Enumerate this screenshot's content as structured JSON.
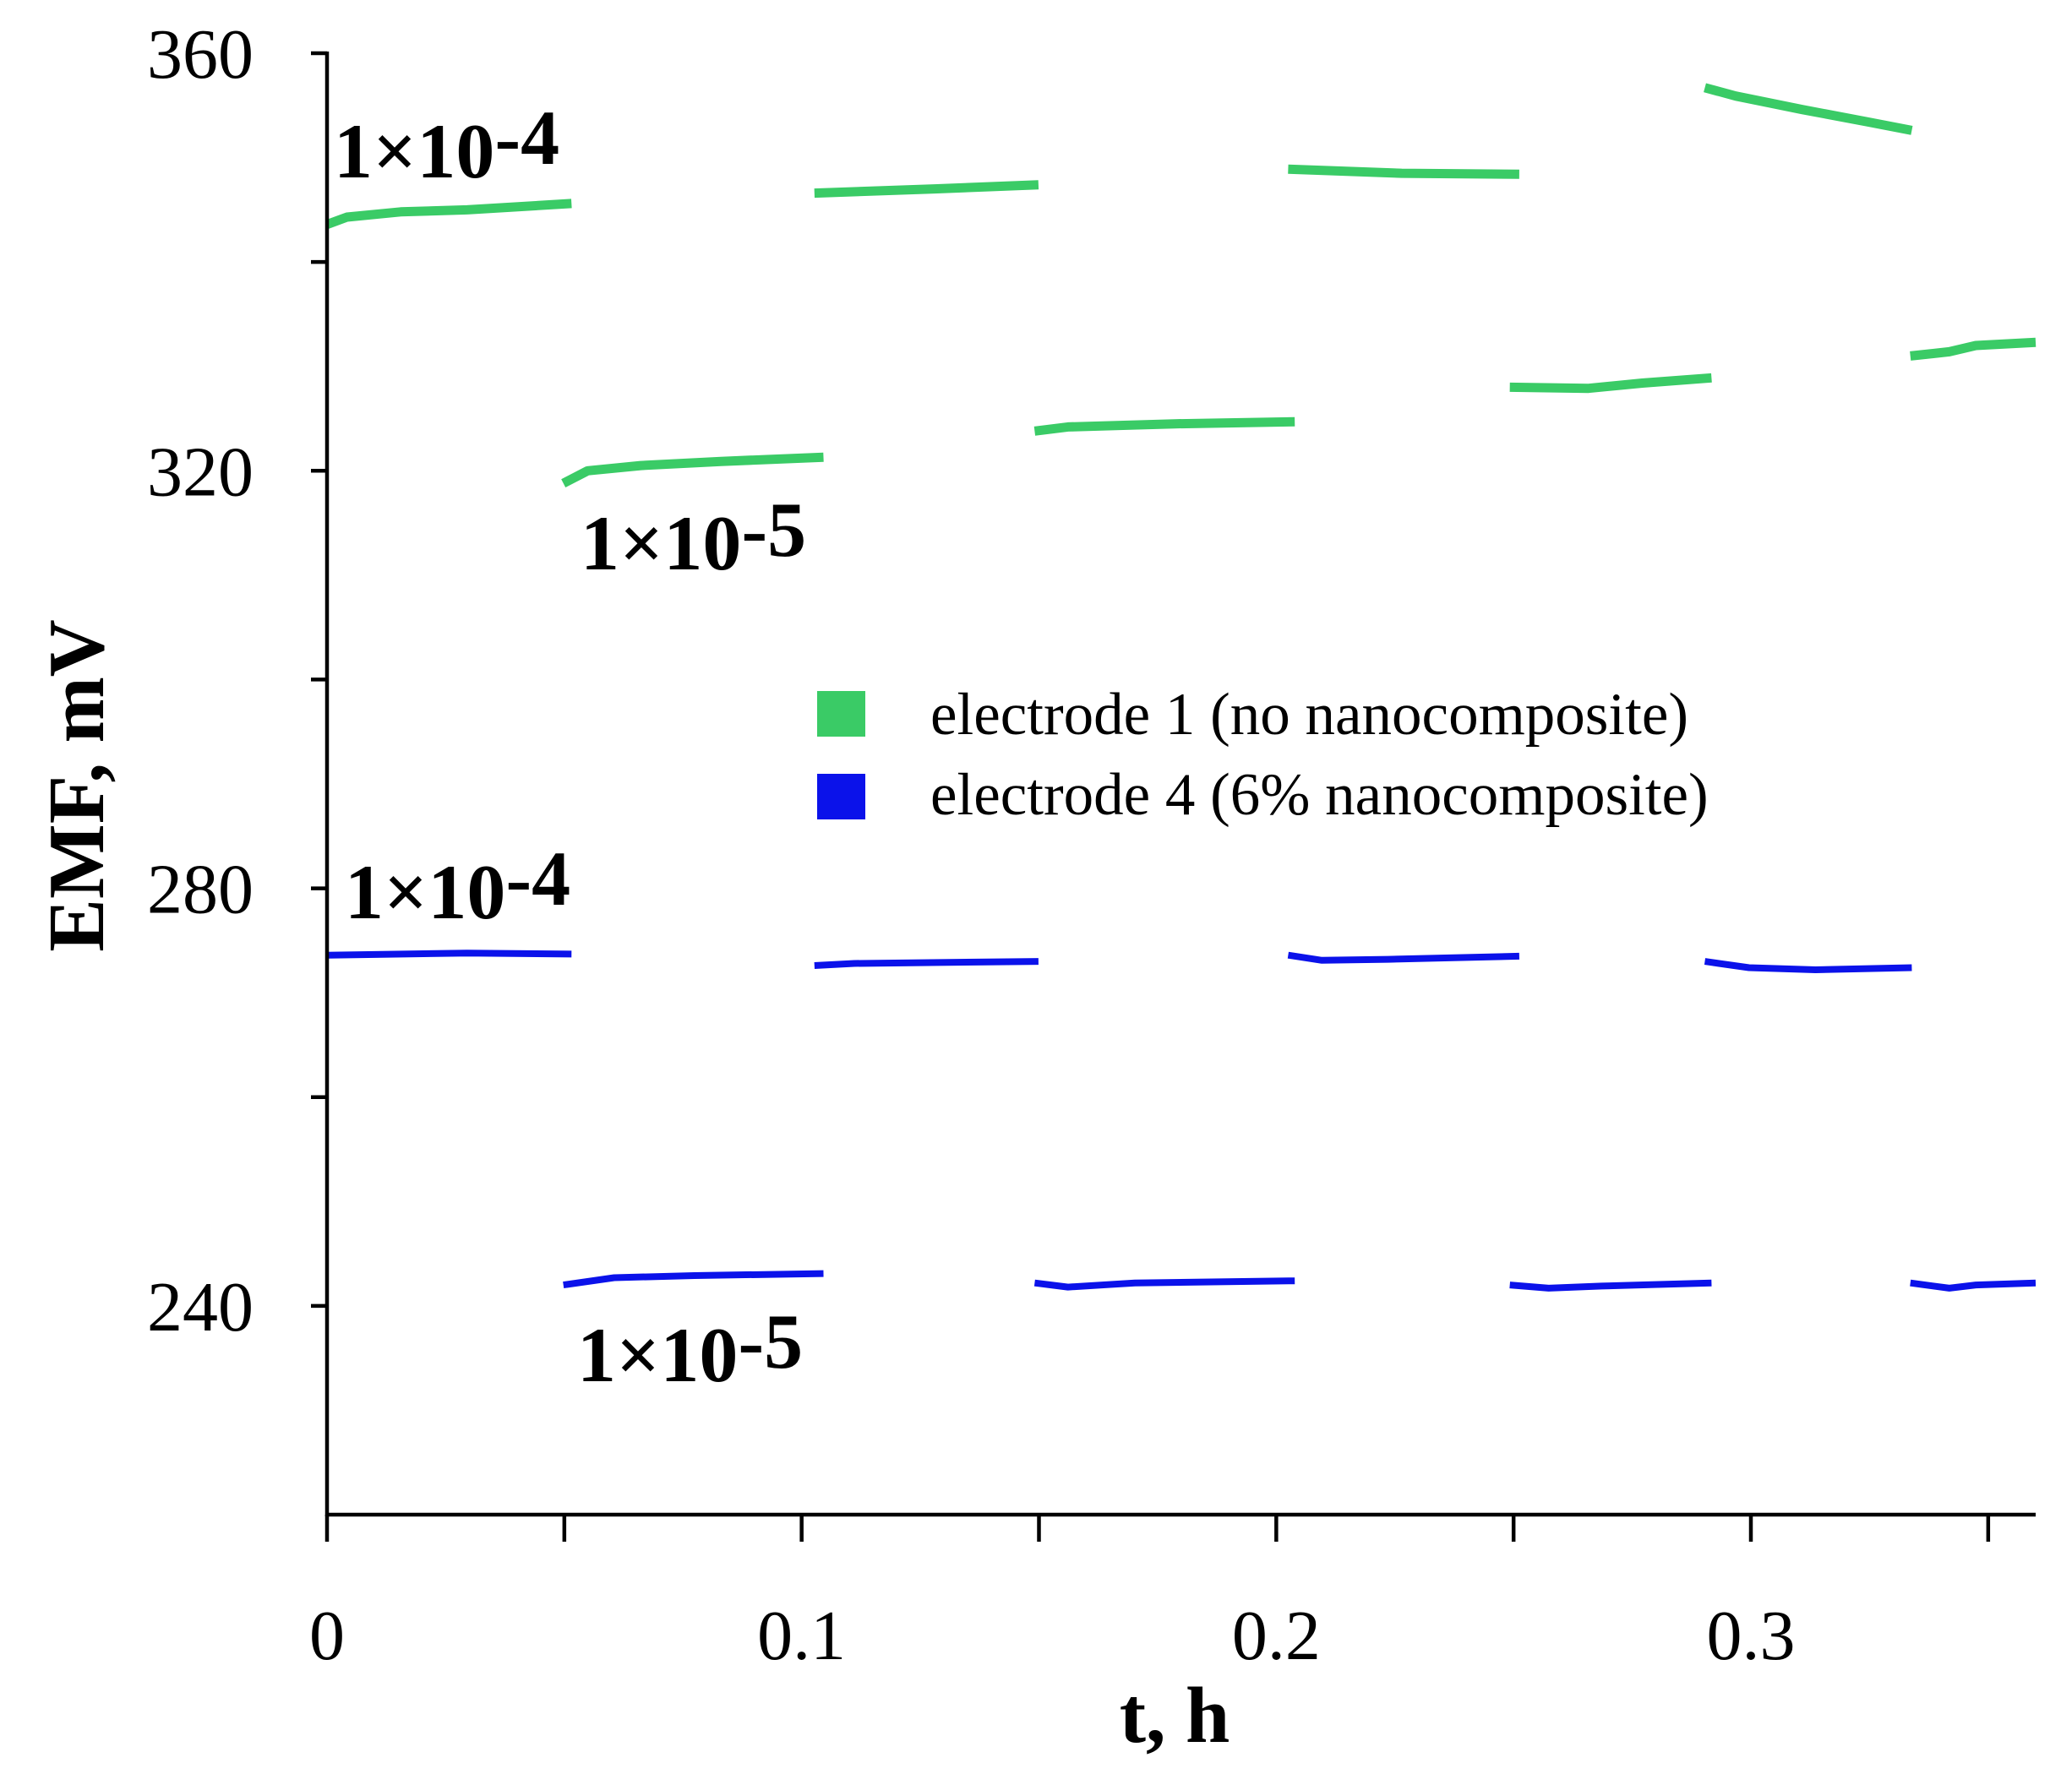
{
  "chart_data": {
    "type": "line",
    "title": "",
    "xlabel": "t, h",
    "ylabel": "EMF, mV",
    "xlim": [
      0,
      0.36
    ],
    "ylim": [
      220,
      360
    ],
    "grid": false,
    "x_ticks": [
      0,
      0.1,
      0.2,
      0.3
    ],
    "x_tick_labels": [
      "0",
      "0.1",
      "0.2",
      "0.3"
    ],
    "x_minor_ticks": [
      0.05,
      0.15,
      0.25,
      0.35
    ],
    "y_ticks": [
      240,
      280,
      320,
      360
    ],
    "y_tick_labels": [
      "240",
      "280",
      "320",
      "360"
    ],
    "y_minor_ticks": [
      260,
      300,
      340
    ],
    "legend": {
      "placement": "center"
    },
    "series": [
      {
        "name": "electrode 1 (no nanocomposite)",
        "color": "#3acb66",
        "segments": [
          [
            [
              0,
              343.6
            ],
            [
              0.0042,
              344.3
            ],
            [
              0.0155,
              344.8
            ],
            [
              0.0295,
              345.0
            ],
            [
              0.0515,
              345.6
            ]
          ],
          [
            [
              0.0498,
              318.8
            ],
            [
              0.0549,
              320.0
            ],
            [
              0.0661,
              320.5
            ],
            [
              0.083,
              320.9
            ],
            [
              0.1046,
              321.3
            ]
          ],
          [
            [
              0.1027,
              346.6
            ],
            [
              0.128,
              347.0
            ],
            [
              0.1499,
              347.4
            ]
          ],
          [
            [
              0.1491,
              323.8
            ],
            [
              0.1561,
              324.2
            ],
            [
              0.1786,
              324.5
            ],
            [
              0.2039,
              324.7
            ]
          ],
          [
            [
              0.2025,
              348.9
            ],
            [
              0.2264,
              348.5
            ],
            [
              0.2512,
              348.4
            ]
          ],
          [
            [
              0.2492,
              328.0
            ],
            [
              0.2658,
              327.9
            ],
            [
              0.2771,
              328.4
            ],
            [
              0.2917,
              328.9
            ]
          ],
          [
            [
              0.2903,
              356.7
            ],
            [
              0.2968,
              355.9
            ],
            [
              0.3108,
              354.6
            ],
            [
              0.3249,
              353.4
            ],
            [
              0.3339,
              352.6
            ]
          ],
          [
            [
              0.3336,
              331.0
            ],
            [
              0.3418,
              331.4
            ],
            [
              0.3474,
              332.0
            ],
            [
              0.36,
              332.3
            ]
          ]
        ]
      },
      {
        "name": "electrode 4 (6% nanocomposite)",
        "color": "#0b12ea",
        "segments": [
          [
            [
              0,
              273.6
            ],
            [
              0.0295,
              273.8
            ],
            [
              0.0515,
              273.7
            ]
          ],
          [
            [
              0.0498,
              242.0
            ],
            [
              0.0605,
              242.7
            ],
            [
              0.0774,
              242.9
            ],
            [
              0.1046,
              243.1
            ]
          ],
          [
            [
              0.1027,
              272.6
            ],
            [
              0.1111,
              272.8
            ],
            [
              0.1499,
              273.0
            ]
          ],
          [
            [
              0.1491,
              242.2
            ],
            [
              0.1561,
              241.8
            ],
            [
              0.1702,
              242.2
            ],
            [
              0.2039,
              242.4
            ]
          ],
          [
            [
              0.2025,
              273.6
            ],
            [
              0.2096,
              273.1
            ],
            [
              0.2236,
              273.2
            ],
            [
              0.2512,
              273.5
            ]
          ],
          [
            [
              0.2492,
              242.0
            ],
            [
              0.2574,
              241.7
            ],
            [
              0.2686,
              241.9
            ],
            [
              0.2917,
              242.2
            ]
          ],
          [
            [
              0.2903,
              273.0
            ],
            [
              0.2996,
              272.4
            ],
            [
              0.3136,
              272.2
            ],
            [
              0.3339,
              272.4
            ]
          ],
          [
            [
              0.3336,
              242.2
            ],
            [
              0.3418,
              241.7
            ],
            [
              0.3474,
              242.0
            ],
            [
              0.36,
              242.2
            ]
          ]
        ]
      }
    ],
    "annotations": [
      {
        "text": "1×10-4"
      },
      {
        "text": "1×10-5"
      },
      {
        "text": "1×10-4"
      },
      {
        "text": "1×10-5"
      }
    ]
  }
}
